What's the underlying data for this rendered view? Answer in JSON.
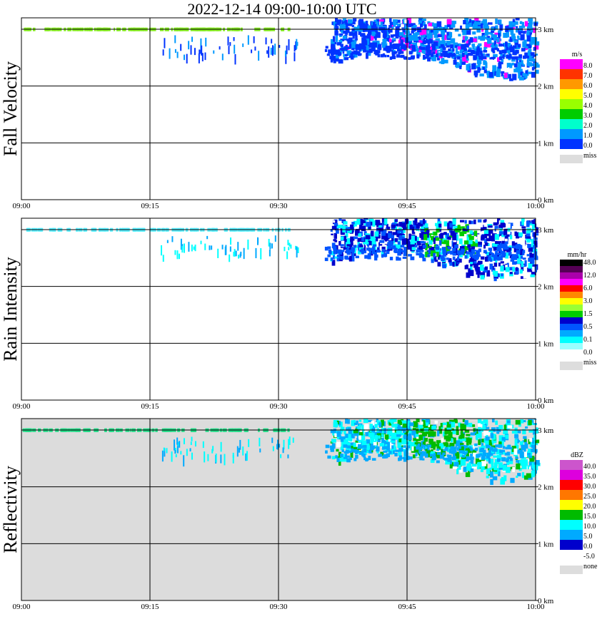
{
  "title": "2022-12-14   09:00-10:00 UTC",
  "x_ticks": [
    "09:00",
    "09:15",
    "09:30",
    "09:45",
    "10:00"
  ],
  "y_ticks": [
    "0 km",
    "1 km",
    "2 km",
    "3 km"
  ],
  "panels": [
    {
      "label": "Fall Velocity",
      "unit": "m/s",
      "background": "#ffffff",
      "legend": [
        {
          "label": "8.0",
          "color": "#ff00ff"
        },
        {
          "label": "7.0",
          "color": "#ff3300"
        },
        {
          "label": "6.0",
          "color": "#ff9900"
        },
        {
          "label": "5.0",
          "color": "#ffff00"
        },
        {
          "label": "4.0",
          "color": "#99ff00"
        },
        {
          "label": "3.0",
          "color": "#00cc00"
        },
        {
          "label": "2.0",
          "color": "#00ffcc"
        },
        {
          "label": "1.0",
          "color": "#0099ff"
        },
        {
          "label": "0.0",
          "color": "#0033ff"
        }
      ],
      "miss_label": "miss",
      "miss_color": "#dddddd",
      "bright_band_color": "#88ee22"
    },
    {
      "label": "Rain Intensity",
      "unit": "mm/hr",
      "background": "#ffffff",
      "legend": [
        {
          "label": "48.0",
          "color": "#000000"
        },
        {
          "label": "",
          "color": "#550055"
        },
        {
          "label": "12.0",
          "color": "#aa00aa"
        },
        {
          "label": "",
          "color": "#ff00ff"
        },
        {
          "label": "6.0",
          "color": "#ff0000"
        },
        {
          "label": "",
          "color": "#ff8800"
        },
        {
          "label": "3.0",
          "color": "#ffff00"
        },
        {
          "label": "",
          "color": "#99ff33"
        },
        {
          "label": "1.5",
          "color": "#00cc00"
        },
        {
          "label": "",
          "color": "#0000cc"
        },
        {
          "label": "0.5",
          "color": "#0055ff"
        },
        {
          "label": "",
          "color": "#00aaff"
        },
        {
          "label": "0.1",
          "color": "#00ffff"
        },
        {
          "label": "",
          "color": "#99ffff"
        },
        {
          "label": "0.0",
          "color": "#ffffff"
        }
      ],
      "miss_label": "miss",
      "miss_color": "#dddddd",
      "bright_band_color": "#55eeff"
    },
    {
      "label": "Reflectivity",
      "unit": "dBZ",
      "background": "#dcdcdc",
      "legend": [
        {
          "label": "40.0",
          "color": "#cc55cc"
        },
        {
          "label": "35.0",
          "color": "#dd00dd"
        },
        {
          "label": "30.0",
          "color": "#ff0000"
        },
        {
          "label": "25.0",
          "color": "#ff7700"
        },
        {
          "label": "20.0",
          "color": "#ffff00"
        },
        {
          "label": "15.0",
          "color": "#00bb00"
        },
        {
          "label": "10.0",
          "color": "#00ffff"
        },
        {
          "label": "5.0",
          "color": "#00aaff"
        },
        {
          "label": "0.0",
          "color": "#0000cc"
        },
        {
          "label": "-5.0",
          "color": "#ffffff"
        }
      ],
      "miss_label": "none",
      "miss_color": "#dddddd",
      "bright_band_color": "#22dd88"
    }
  ],
  "chart_data": {
    "type": "heatmap",
    "x_range": [
      "09:00",
      "10:00"
    ],
    "y_range_km": [
      0,
      3.2
    ],
    "grid": true,
    "legend_placement": "right"
  }
}
